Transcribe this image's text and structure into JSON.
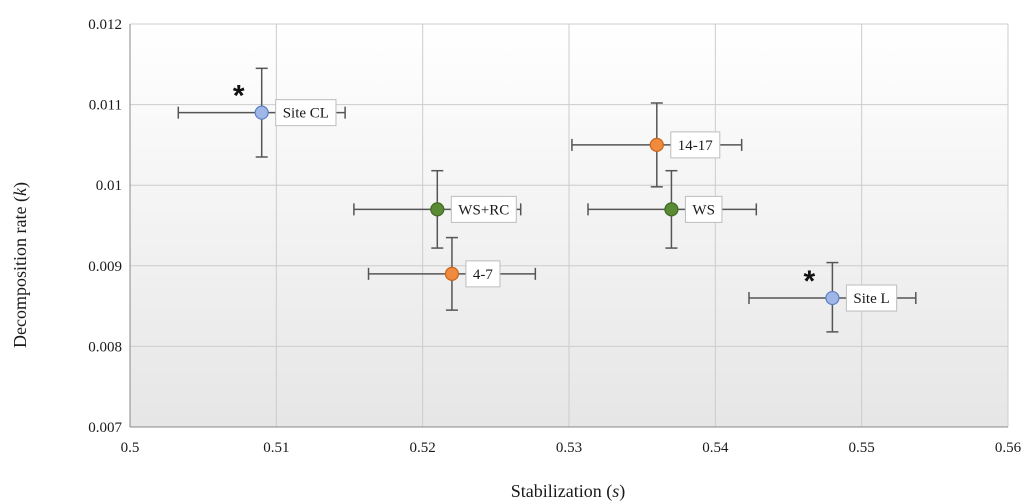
{
  "chart_data": {
    "type": "scatter",
    "title": "",
    "xlabel": "Stabilization (s)",
    "ylabel": "Decomposition rate (k)",
    "xlabel_parts": [
      "Stabilization (",
      "s",
      ")"
    ],
    "ylabel_parts": [
      "Decomposition rate (",
      "k",
      ")"
    ],
    "xlim": [
      0.5,
      0.56
    ],
    "ylim": [
      0.007,
      0.012
    ],
    "x_ticks": [
      0.5,
      0.51,
      0.52,
      0.53,
      0.54,
      0.55,
      0.56
    ],
    "x_tick_labels": [
      "0.5",
      "0.51",
      "0.52",
      "0.53",
      "0.54",
      "0.55",
      "0.56"
    ],
    "y_ticks": [
      0.007,
      0.008,
      0.009,
      0.01,
      0.011,
      0.012
    ],
    "y_tick_labels": [
      "0.007",
      "0.008",
      "0.009",
      "0.01",
      "0.011",
      "0.012"
    ],
    "grid": true,
    "legend": "none",
    "colors": {
      "blue": "#9fb6e6",
      "blue_edge": "#5b7fc4",
      "orange": "#f08a3c",
      "orange_edge": "#c9641c",
      "green": "#5a8a34",
      "green_edge": "#3f6a22",
      "errorbar": "#555555",
      "grid": "#cccccc",
      "plot_bg_top": "#ffffff",
      "plot_bg_bottom": "#e6e6e6"
    },
    "points": [
      {
        "label": "Site CL",
        "x": 0.509,
        "y": 0.0109,
        "xerr": [
          0.5033,
          0.5147
        ],
        "yerr": [
          0.01035,
          0.01145
        ],
        "color": "blue",
        "star": "*"
      },
      {
        "label": "14-17",
        "x": 0.536,
        "y": 0.0105,
        "xerr": [
          0.5302,
          0.5418
        ],
        "yerr": [
          0.00998,
          0.01102
        ],
        "color": "orange",
        "star": ""
      },
      {
        "label": "WS+RC",
        "x": 0.521,
        "y": 0.0097,
        "xerr": [
          0.5153,
          0.5267
        ],
        "yerr": [
          0.00922,
          0.01018
        ],
        "color": "green",
        "star": ""
      },
      {
        "label": "WS",
        "x": 0.537,
        "y": 0.0097,
        "xerr": [
          0.5313,
          0.5428
        ],
        "yerr": [
          0.00922,
          0.01018
        ],
        "color": "green",
        "star": ""
      },
      {
        "label": "4-7",
        "x": 0.522,
        "y": 0.0089,
        "xerr": [
          0.5163,
          0.5277
        ],
        "yerr": [
          0.00845,
          0.00935
        ],
        "color": "orange",
        "star": ""
      },
      {
        "label": "Site L",
        "x": 0.548,
        "y": 0.0086,
        "xerr": [
          0.5423,
          0.5537
        ],
        "yerr": [
          0.00818,
          0.00904
        ],
        "color": "blue",
        "star": "*"
      }
    ]
  }
}
